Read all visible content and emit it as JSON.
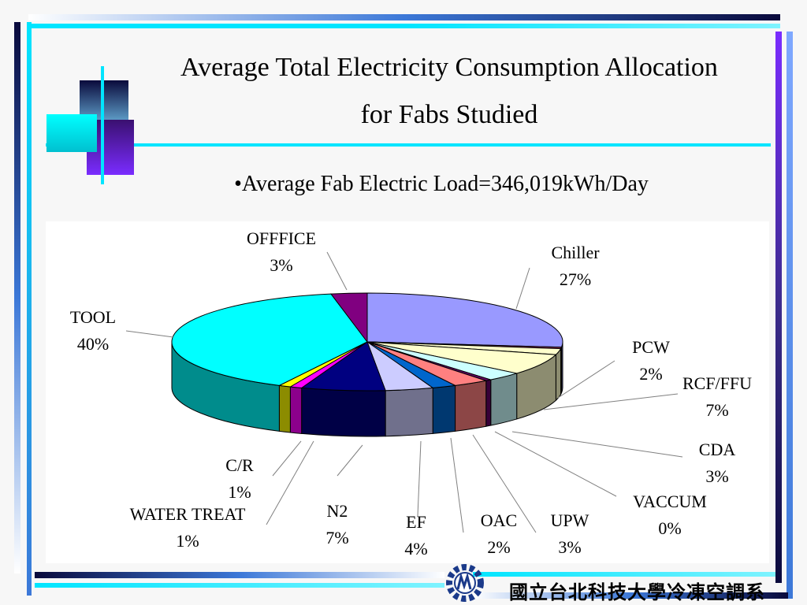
{
  "slide": {
    "title_line1": "Average Total Electricity Consumption Allocation",
    "title_line2": "for  Fabs Studied",
    "bullet": "•Average Fab Electric Load=346,019kWh/Day",
    "footer_text": "國立台北科技大學冷凍空調系"
  },
  "colors": {
    "accent_cyan": "#00e5ff",
    "accent_navy": "#0a0a3c",
    "accent_purple": "#7a2cff",
    "accent_blue": "#3c78d8"
  },
  "chart_data": {
    "type": "pie",
    "title": "",
    "legend": "none",
    "slices": [
      {
        "label": "Chiller",
        "pct_label": "27%",
        "value": 27,
        "color": "#9999ff"
      },
      {
        "label": "",
        "pct_label": "",
        "value": 0.5,
        "color": "#993366"
      },
      {
        "label": "PCW",
        "pct_label": "2%",
        "value": 2,
        "color": "#ffffcc"
      },
      {
        "label": "RCF/FFU",
        "pct_label": "7%",
        "value": 7,
        "color": "#ffffcc"
      },
      {
        "label": "CDA",
        "pct_label": "3%",
        "value": 3,
        "color": "#ccffff"
      },
      {
        "label": "VACCUM",
        "pct_label": "0%",
        "value": 0.5,
        "color": "#660066"
      },
      {
        "label": "UPW",
        "pct_label": "3%",
        "value": 3,
        "color": "#ff8080"
      },
      {
        "label": "OAC",
        "pct_label": "2%",
        "value": 2,
        "color": "#0066cc"
      },
      {
        "label": "EF",
        "pct_label": "4%",
        "value": 4,
        "color": "#ccccff"
      },
      {
        "label": "N2",
        "pct_label": "7%",
        "value": 7,
        "color": "#000080"
      },
      {
        "label": "WATER TREAT",
        "pct_label": "1%",
        "value": 1,
        "color": "#ff00ff"
      },
      {
        "label": "C/R",
        "pct_label": "1%",
        "value": 1,
        "color": "#ffff00"
      },
      {
        "label": "TOOL",
        "pct_label": "40%",
        "value": 40,
        "color": "#00ffff"
      },
      {
        "label": "OFFFICE",
        "pct_label": "3%",
        "value": 3,
        "color": "#800080"
      }
    ]
  }
}
